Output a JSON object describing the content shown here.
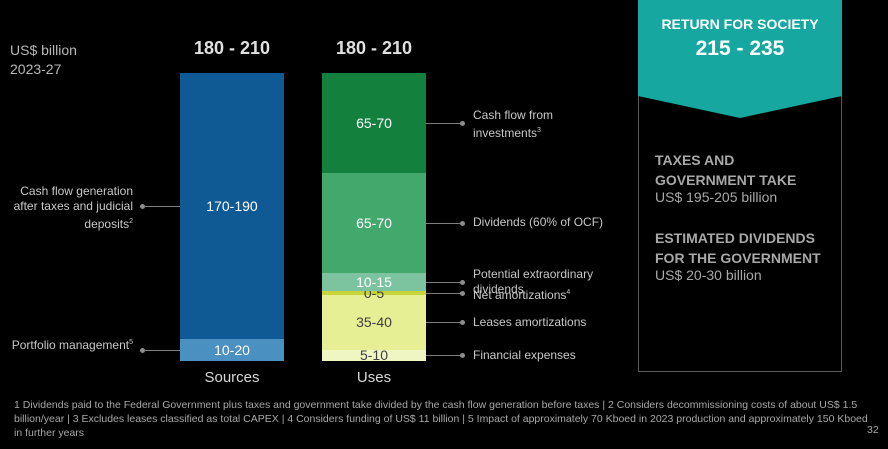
{
  "chart_data": {
    "type": "bar",
    "stacked": true,
    "unit_lines": [
      "US$ billion",
      "2023-27"
    ],
    "categories": [
      "Sources",
      "Uses"
    ],
    "totals": [
      "180 - 210",
      "180 - 210"
    ],
    "ylim": [
      0,
      200
    ],
    "series": [
      {
        "category": "Sources",
        "segments": [
          {
            "label": "10-20",
            "value": 15,
            "color": "#4a90c0",
            "annotation": "Portfolio management",
            "annotation_sup": "5"
          },
          {
            "label": "170-190",
            "value": 180,
            "color": "#0f5a95",
            "annotation": "Cash flow generation after taxes and judicial deposits",
            "annotation_sup": "2"
          }
        ]
      },
      {
        "category": "Uses",
        "segments": [
          {
            "label": "5-10",
            "value": 7.5,
            "color": "#f0f5c4",
            "annotation": "Financial expenses",
            "annotation_sup": ""
          },
          {
            "label": "35-40",
            "value": 37.5,
            "color": "#e6ef94",
            "annotation": "Leases amortizations",
            "annotation_sup": ""
          },
          {
            "label": "0-5",
            "value": 2.5,
            "color": "#c9d43a",
            "annotation": "Net amortizations",
            "annotation_sup": "4"
          },
          {
            "label": "10-15",
            "value": 12.5,
            "color": "#7cc4a0",
            "annotation": "Potential extraordinary dividends",
            "annotation_sup": ""
          },
          {
            "label": "65-70",
            "value": 67.5,
            "color": "#43a86b",
            "annotation": "Dividends (60% of OCF)",
            "annotation_sup": ""
          },
          {
            "label": "65-70",
            "value": 67.5,
            "color": "#13813d",
            "annotation": "Cash flow from investments",
            "annotation_sup": "3"
          }
        ]
      }
    ]
  },
  "return_for_society": {
    "title": "RETURN FOR SOCIETY",
    "value": "215 - 235",
    "color": "#16a8a0"
  },
  "taxes": {
    "heading_line1": "TAXES AND",
    "heading_line2": "GOVERNMENT TAKE",
    "value": "US$ 195-205 billion"
  },
  "dividends": {
    "heading_line1": "ESTIMATED DIVIDENDS",
    "heading_line2": "FOR THE GOVERNMENT",
    "value": "US$ 20-30 billion"
  },
  "footnote": "1 Dividends paid to the Federal Government plus taxes and government take divided by the cash flow generation before taxes | 2 Considers decommissioning costs of about US$ 1.5 billion/year | 3 Excludes leases classified as total CAPEX | 4 Considers funding of US$ 11 billion | 5 Impact of approximately 70 Kboed in 2023 production and approximately 150 Kboed in further years",
  "page_number": "32"
}
